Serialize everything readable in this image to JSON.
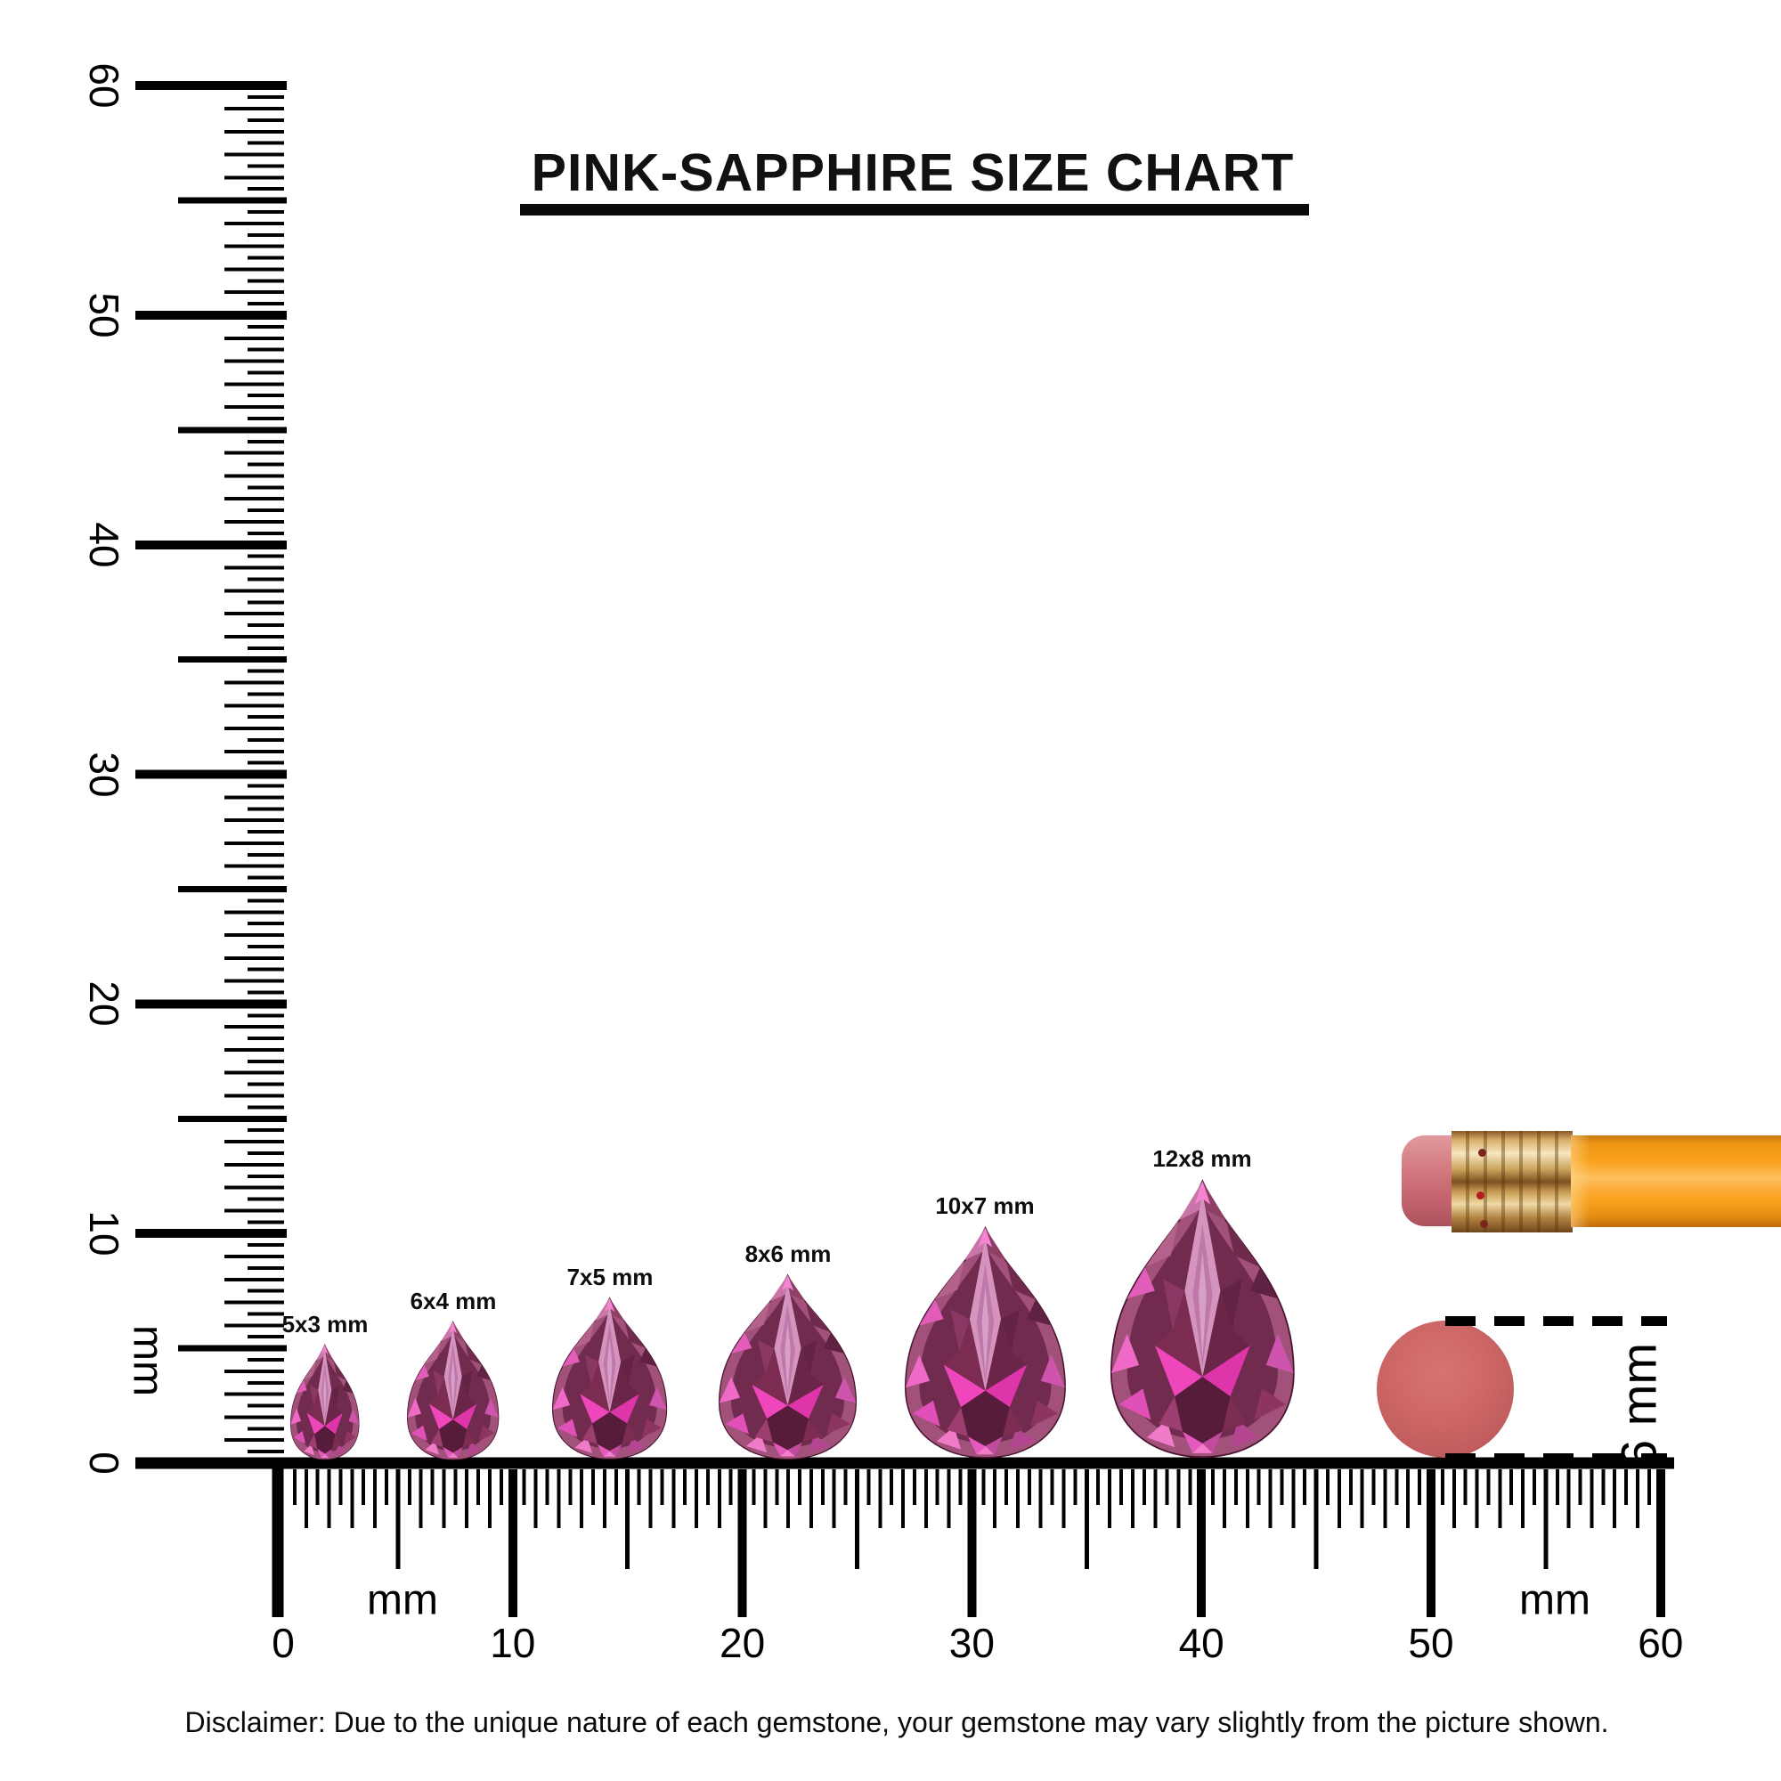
{
  "title": "PINK-SAPPHIRE SIZE CHART",
  "vertical_ruler": {
    "unit": "mm",
    "major_labels": [
      "60",
      "50",
      "40",
      "30",
      "20",
      "10",
      "0"
    ]
  },
  "horizontal_ruler": {
    "unit_left": "mm",
    "unit_right": "mm",
    "major_labels": [
      "0",
      "10",
      "20",
      "30",
      "40",
      "50",
      "60"
    ]
  },
  "gems": [
    {
      "label": "5x3 mm",
      "length_mm": 5,
      "width_mm": 3
    },
    {
      "label": "6x4 mm",
      "length_mm": 6,
      "width_mm": 4
    },
    {
      "label": "7x5 mm",
      "length_mm": 7,
      "width_mm": 5
    },
    {
      "label": "8x6 mm",
      "length_mm": 8,
      "width_mm": 6
    },
    {
      "label": "10x7 mm",
      "length_mm": 10,
      "width_mm": 7
    },
    {
      "label": "12x8 mm",
      "length_mm": 12,
      "width_mm": 8
    }
  ],
  "reference_objects": {
    "pencil": "pencil-with-eraser",
    "eraser_disc_diameter_label": "6 mm"
  },
  "disclaimer": "Disclaimer: Due to the unique nature of each gemstone, your gemstone may vary slightly from the picture shown.",
  "colors": {
    "ink": "#000000",
    "gem_base": "#a2527a",
    "gem_dark": "#571c3a",
    "gem_hot_pink": "#f046bb",
    "gem_light": "#d494be",
    "pencil_orange": "#f9a01b",
    "ferrule_gold": "#caa35c",
    "eraser_pink": "#cd6766"
  },
  "chart_data": {
    "type": "table",
    "title": "PINK-SAPPHIRE SIZE CHART",
    "categories": [
      "5x3 mm",
      "6x4 mm",
      "7x5 mm",
      "8x6 mm",
      "10x7 mm",
      "12x8 mm"
    ],
    "series": [
      {
        "name": "length_mm",
        "values": [
          5,
          6,
          7,
          8,
          10,
          12
        ]
      },
      {
        "name": "width_mm",
        "values": [
          3,
          4,
          5,
          6,
          7,
          8
        ]
      }
    ],
    "xlabel": "mm",
    "ylabel": "mm",
    "axis_range_mm": [
      0,
      60
    ]
  }
}
